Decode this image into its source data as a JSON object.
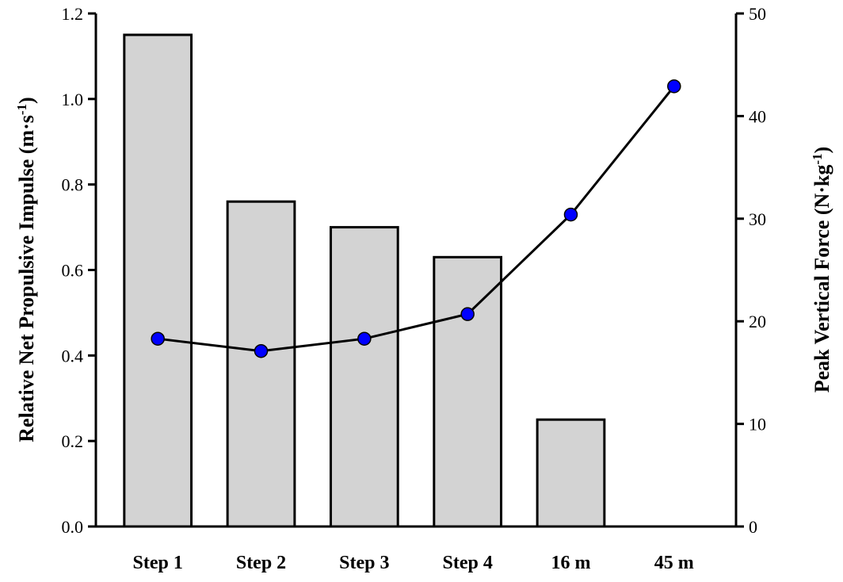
{
  "chart_data": {
    "type": "bar",
    "categories": [
      "Step 1",
      "Step 2",
      "Step 3",
      "Step 4",
      "16 m",
      "45 m"
    ],
    "ylabel": "Relative Net Propulsive Impulse (m·s⁻¹)",
    "ylabel_parts": {
      "main": "Relative Net Propulsive Impulse (m",
      "dot": "·",
      "mid": "s",
      "sup": "-1",
      "end": ")"
    },
    "ylim": [
      0,
      1.2
    ],
    "y_ticks": [
      "0.0",
      "0.2",
      "0.4",
      "0.6",
      "0.8",
      "1.0",
      "1.2"
    ],
    "y2label": "Peak Vertical Force (N·kg⁻¹)",
    "y2label_parts": {
      "main": "Peak Vertical Force (N",
      "dot": "·",
      "mid": "kg",
      "sup": "-1",
      "end": ")"
    },
    "y2lim": [
      0,
      50
    ],
    "y2_ticks": [
      "0",
      "10",
      "20",
      "30",
      "40",
      "50"
    ],
    "bar_values": [
      1.15,
      0.76,
      0.7,
      0.63,
      0.25,
      null
    ],
    "line_values": [
      18.3,
      17.1,
      18.3,
      20.7,
      30.4,
      42.9
    ],
    "grid": false,
    "colors": {
      "bar_fill": "#d3d3d3",
      "bar_stroke": "#000000",
      "point_fill": "#0000ff",
      "line": "#000000"
    }
  }
}
